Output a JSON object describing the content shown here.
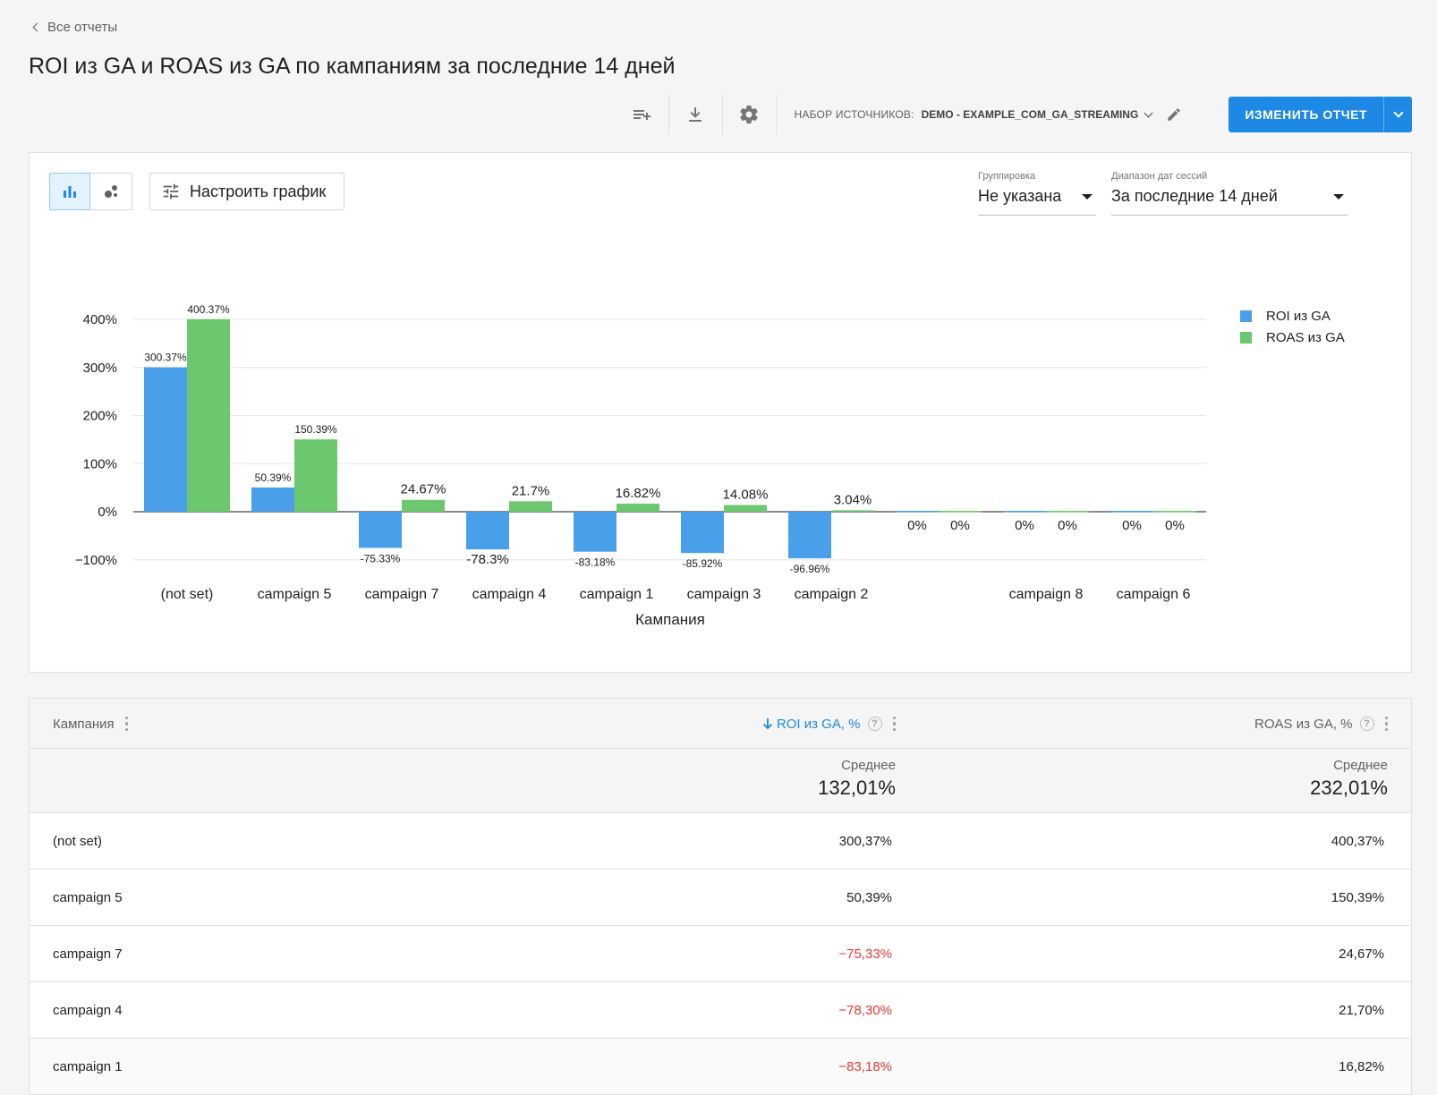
{
  "nav": {
    "back_label": "Все отчеты"
  },
  "page": {
    "title": "ROI из GA и ROAS из GA по кампаниям за последние 14 дней"
  },
  "toolbar": {
    "source_label": "НАБОР ИСТОЧНИКОВ:",
    "source_value": "DEMO - EXAMPLE_COM_GA_STREAMING",
    "edit_button": "ИЗМЕНИТЬ ОТЧЕТ",
    "icons": [
      "playlist-add-icon",
      "download-icon",
      "gear-icon",
      "pencil-icon"
    ]
  },
  "chart_controls": {
    "configure_label": "Настроить график",
    "grouping_caption": "Группировка",
    "grouping_value": "Не указана",
    "daterange_caption": "Диапазон дат сессий",
    "daterange_value": "За последние 14 дней"
  },
  "chart_data": {
    "type": "bar",
    "categories": [
      "(not set)",
      "campaign 5",
      "campaign 7",
      "campaign 4",
      "campaign 1",
      "campaign 3",
      "campaign 2",
      "",
      "campaign 8",
      "campaign 6"
    ],
    "series": [
      {
        "name": "ROI из GA",
        "color": "#4a9fea",
        "values": [
          300.37,
          50.39,
          -75.33,
          -78.3,
          -83.18,
          -85.92,
          -96.96,
          0,
          0,
          0
        ]
      },
      {
        "name": "ROAS из GA",
        "color": "#6cc86f",
        "values": [
          400.37,
          150.39,
          24.67,
          21.7,
          16.82,
          14.08,
          3.04,
          0,
          0,
          0
        ]
      }
    ],
    "data_labels": [
      [
        "300.37%",
        "50.39%",
        "-75.33%",
        "-78.3%",
        "-83.18%",
        "-85.92%",
        "-96.96%",
        "0%",
        "0%",
        "0%"
      ],
      [
        "400.37%",
        "150.39%",
        "24.67%",
        "21.7%",
        "16.82%",
        "14.08%",
        "3.04%",
        "0%",
        "0%",
        "0%"
      ]
    ],
    "yticks": [
      400,
      300,
      200,
      100,
      0,
      -100
    ],
    "ytick_labels": [
      "400%",
      "300%",
      "200%",
      "100%",
      "0%",
      "−100%"
    ],
    "ylim": [
      -100,
      400
    ],
    "xlabel": "Кампания",
    "ylabel": "",
    "grid": true,
    "legend": "top-right"
  },
  "table": {
    "headers": {
      "campaign": "Кампания",
      "roi": "ROI из GA, %",
      "roas": "ROAS из GA, %"
    },
    "summary": {
      "roi_caption": "Среднее",
      "roi_value": "132,01%",
      "roas_caption": "Среднее",
      "roas_value": "232,01%"
    },
    "rows": [
      {
        "campaign": "(not set)",
        "roi": "300,37%",
        "roas": "400,37%",
        "roi_negative": false
      },
      {
        "campaign": "campaign 5",
        "roi": "50,39%",
        "roas": "150,39%",
        "roi_negative": false
      },
      {
        "campaign": "campaign 7",
        "roi": "−75,33%",
        "roas": "24,67%",
        "roi_negative": true
      },
      {
        "campaign": "campaign 4",
        "roi": "−78,30%",
        "roas": "21,70%",
        "roi_negative": true
      },
      {
        "campaign": "campaign 1",
        "roi": "−83,18%",
        "roas": "16,82%",
        "roi_negative": true
      }
    ]
  }
}
